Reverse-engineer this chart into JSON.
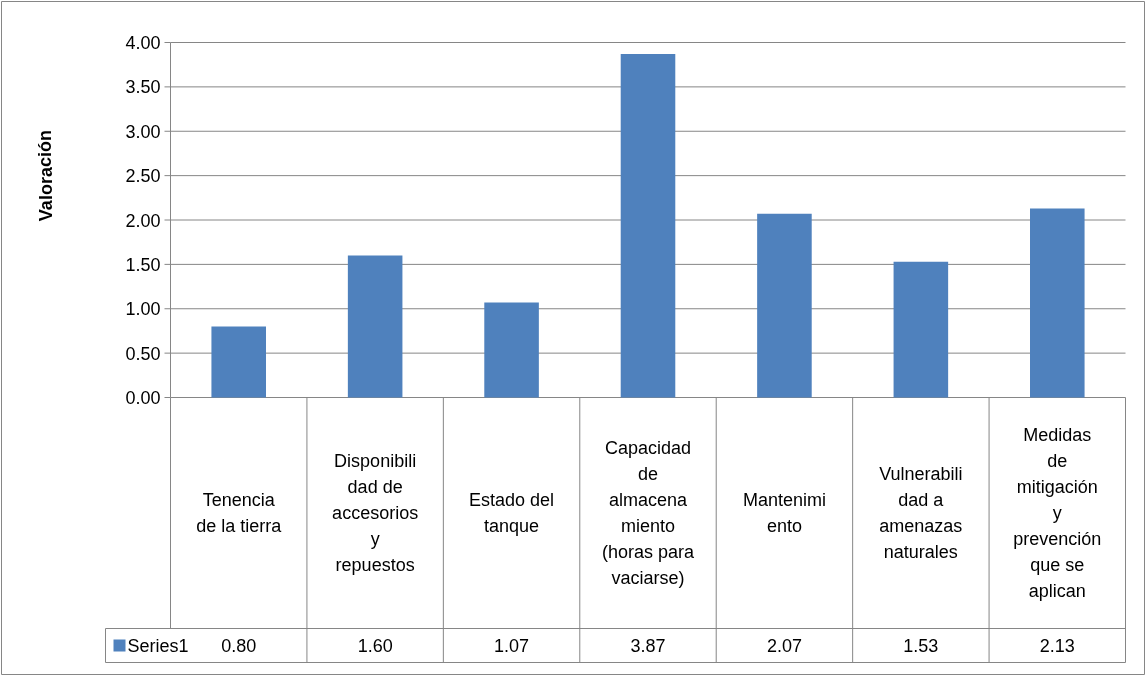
{
  "chart_data": {
    "type": "bar",
    "ylabel": "Valoración",
    "categories": [
      "Tenencia de la tierra",
      "Disponibilidad de accesorios y repuestos",
      "Estado del tanque",
      "Capacidad de almacenamiento (horas para vaciarse)",
      "Mantenimiento",
      "Vulnerabilidad a amenazas naturales",
      "Medidas de mitigación y prevención que se aplican"
    ],
    "series": [
      {
        "name": "Series1",
        "color": "#4f81bd",
        "values": [
          0.8,
          1.6,
          1.07,
          3.87,
          2.07,
          1.53,
          2.13
        ],
        "value_labels": [
          "0.80",
          "1.60",
          "1.07",
          "3.87",
          "2.07",
          "1.53",
          "2.13"
        ]
      }
    ],
    "ylim": [
      0,
      4
    ],
    "yticks": [
      {
        "value": 0,
        "label": "0.00"
      },
      {
        "value": 0.5,
        "label": "0.50"
      },
      {
        "value": 1,
        "label": "1.00"
      },
      {
        "value": 1.5,
        "label": "1.50"
      },
      {
        "value": 2,
        "label": "2.00"
      },
      {
        "value": 2.5,
        "label": "2.50"
      },
      {
        "value": 3,
        "label": "3.00"
      },
      {
        "value": 3.5,
        "label": "3.50"
      },
      {
        "value": 4,
        "label": "4.00"
      }
    ],
    "grid": "y"
  }
}
